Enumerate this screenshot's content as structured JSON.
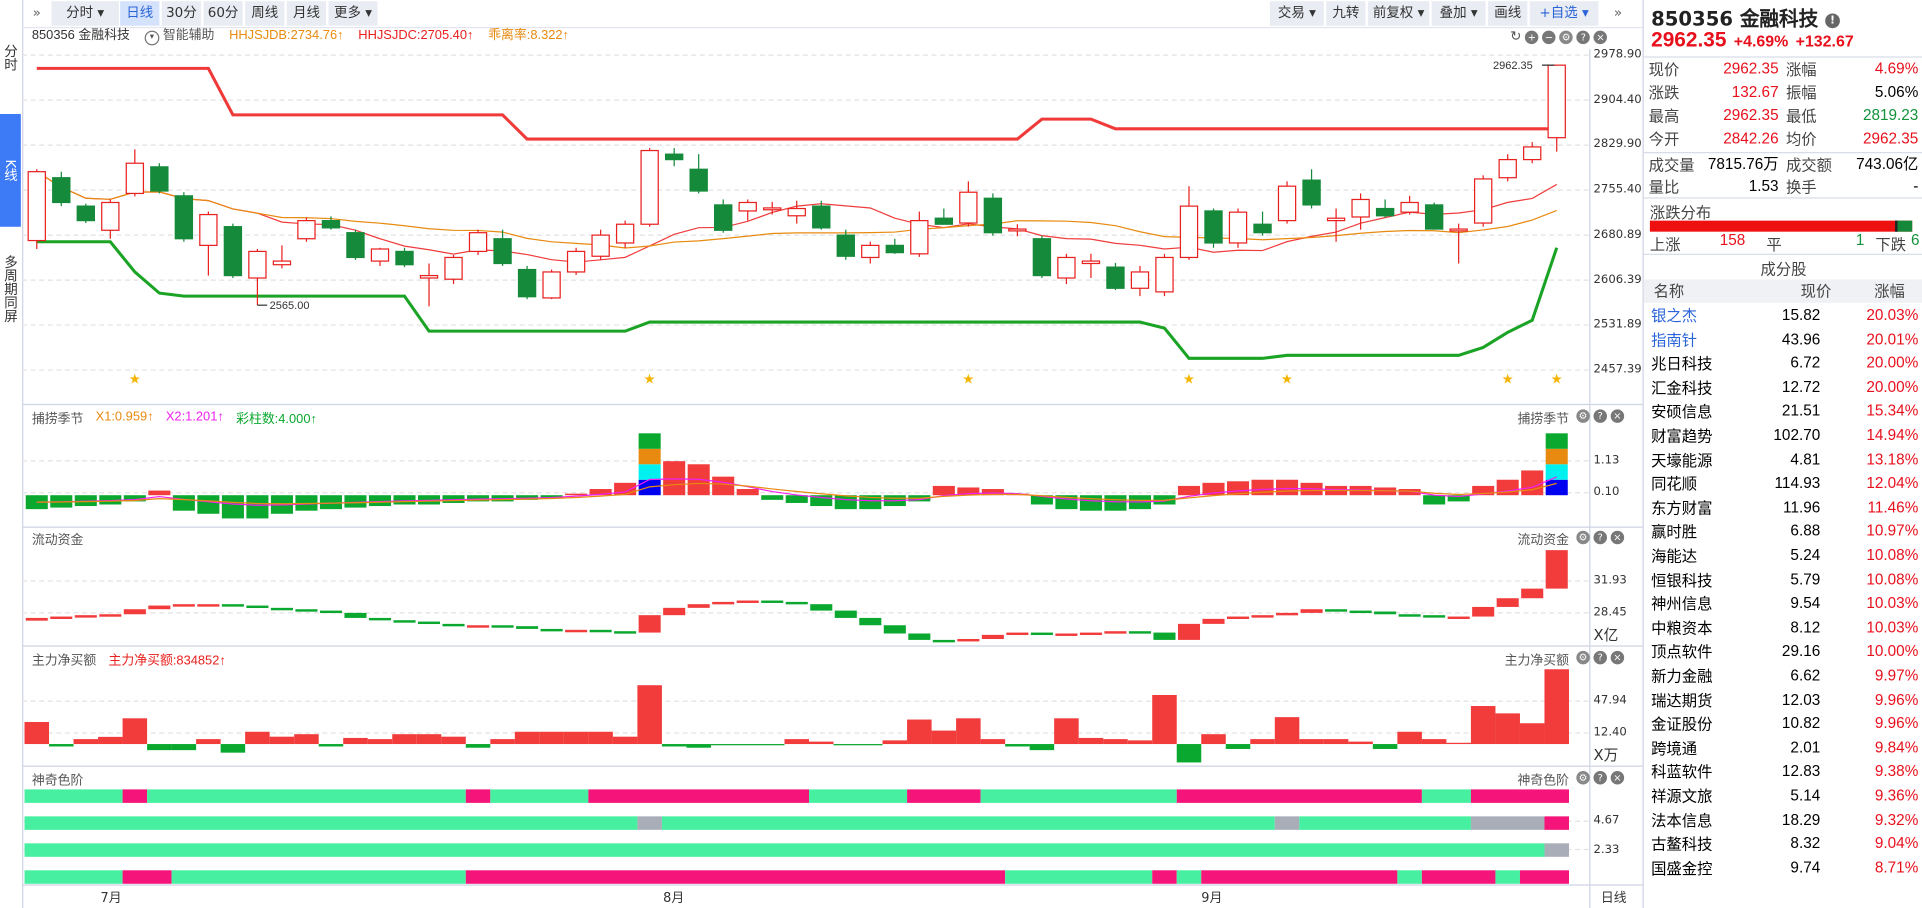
{
  "left_tabs": [
    {
      "label": "分时"
    },
    {
      "label": "K线"
    },
    {
      "label": "多周期同屏"
    }
  ],
  "toolbar": {
    "expand": "»",
    "left": [
      {
        "label": "分时 ▾"
      },
      {
        "label": "日线"
      },
      {
        "label": "30分"
      },
      {
        "label": "60分"
      },
      {
        "label": "周线"
      },
      {
        "label": "月线"
      },
      {
        "label": "更多 ▾"
      }
    ],
    "right": [
      {
        "label": "交易 ▾"
      },
      {
        "label": "九转"
      },
      {
        "label": "前复权 ▾"
      },
      {
        "label": "叠加 ▾"
      },
      {
        "label": "画线"
      },
      {
        "label": "+自选 ▾"
      }
    ],
    "collapse": "»"
  },
  "chart_header": {
    "symbol": "850356 金融科技",
    "assist": "智能辅助",
    "ind1": "HHJSJDB:2734.76↑",
    "ind2": "HHJSJDC:2705.40↑",
    "ind3": "乖离率:8.322↑"
  },
  "colors": {
    "up": "#e8201e",
    "down": "#158a3a",
    "bar_up": "#f23b3b",
    "bar_down": "#0aa82e",
    "band_upper": "#f03a3a",
    "band_lower": "#1aa324",
    "ma5": "#f03c3c",
    "ma10": "#e88a10",
    "pink": "#f5147a",
    "mint": "#46f0a0",
    "gray": "#a9adb8"
  },
  "main_axis": [
    "2978.90",
    "2904.40",
    "2829.90",
    "2755.40",
    "2680.89",
    "2606.39",
    "2531.89",
    "2457.39"
  ],
  "price_labels": {
    "high": "2962.35",
    "low": "2565.00"
  },
  "x_labels": [
    "7月",
    "8月",
    "9月"
  ],
  "period_label": "日线",
  "candles": [
    [
      2672,
      2790,
      2658,
      2786
    ],
    [
      2776,
      2786,
      2729,
      2735
    ],
    [
      2729,
      2733,
      2701,
      2705
    ],
    [
      2689,
      2740,
      2675,
      2735
    ],
    [
      2750,
      2823,
      2745,
      2800
    ],
    [
      2794,
      2800,
      2750,
      2754
    ],
    [
      2746,
      2752,
      2670,
      2675
    ],
    [
      2664,
      2720,
      2614,
      2715
    ],
    [
      2695,
      2700,
      2610,
      2614
    ],
    [
      2610,
      2658,
      2565,
      2654
    ],
    [
      2632,
      2664,
      2626,
      2638
    ],
    [
      2675,
      2710,
      2670,
      2705
    ],
    [
      2705,
      2712,
      2690,
      2693
    ],
    [
      2685,
      2690,
      2640,
      2644
    ],
    [
      2638,
      2660,
      2630,
      2658
    ],
    [
      2654,
      2660,
      2628,
      2632
    ],
    [
      2610,
      2634,
      2563,
      2614
    ],
    [
      2608,
      2648,
      2600,
      2644
    ],
    [
      2654,
      2690,
      2648,
      2685
    ],
    [
      2675,
      2690,
      2630,
      2634
    ],
    [
      2624,
      2630,
      2575,
      2579
    ],
    [
      2577,
      2624,
      2575,
      2620
    ],
    [
      2620,
      2660,
      2615,
      2654
    ],
    [
      2646,
      2690,
      2640,
      2681
    ],
    [
      2668,
      2705,
      2660,
      2699
    ],
    [
      2699,
      2825,
      2695,
      2821
    ],
    [
      2815,
      2825,
      2795,
      2806
    ],
    [
      2790,
      2815,
      2750,
      2754
    ],
    [
      2731,
      2740,
      2685,
      2689
    ],
    [
      2721,
      2740,
      2705,
      2735
    ],
    [
      2725,
      2736,
      2715,
      2726
    ],
    [
      2713,
      2738,
      2700,
      2725
    ],
    [
      2729,
      2738,
      2690,
      2693
    ],
    [
      2681,
      2690,
      2640,
      2646
    ],
    [
      2644,
      2670,
      2634,
      2664
    ],
    [
      2664,
      2675,
      2650,
      2652
    ],
    [
      2650,
      2720,
      2645,
      2705
    ],
    [
      2709,
      2725,
      2700,
      2699
    ],
    [
      2701,
      2770,
      2695,
      2752
    ],
    [
      2742,
      2750,
      2680,
      2685
    ],
    [
      2689,
      2699,
      2679,
      2691
    ],
    [
      2675,
      2680,
      2610,
      2614
    ],
    [
      2610,
      2650,
      2600,
      2644
    ],
    [
      2634,
      2650,
      2610,
      2638
    ],
    [
      2628,
      2635,
      2590,
      2593
    ],
    [
      2593,
      2630,
      2580,
      2620
    ],
    [
      2587,
      2650,
      2580,
      2644
    ],
    [
      2644,
      2762,
      2640,
      2729
    ],
    [
      2721,
      2725,
      2660,
      2668
    ],
    [
      2668,
      2725,
      2660,
      2719
    ],
    [
      2699,
      2720,
      2680,
      2685
    ],
    [
      2705,
      2770,
      2700,
      2762
    ],
    [
      2772,
      2790,
      2725,
      2731
    ],
    [
      2705,
      2725,
      2670,
      2709
    ],
    [
      2711,
      2750,
      2690,
      2740
    ],
    [
      2725,
      2740,
      2710,
      2713
    ],
    [
      2719,
      2746,
      2715,
      2735
    ],
    [
      2731,
      2735,
      2690,
      2691
    ],
    [
      2689,
      2700,
      2634,
      2691
    ],
    [
      2701,
      2780,
      2695,
      2774
    ],
    [
      2776,
      2815,
      2770,
      2806
    ],
    [
      2806,
      2835,
      2800,
      2827
    ],
    [
      2842.26,
      2962.35,
      2819.23,
      2962.35
    ]
  ],
  "band_upper": [
    2957,
    2957,
    2957,
    2957,
    2957,
    2957,
    2957,
    2957,
    2880,
    2880,
    2880,
    2880,
    2880,
    2880,
    2880,
    2880,
    2880,
    2880,
    2880,
    2880,
    2840,
    2840,
    2840,
    2840,
    2840,
    2840,
    2840,
    2840,
    2840,
    2840,
    2840,
    2840,
    2840,
    2840,
    2840,
    2840,
    2840,
    2840,
    2840,
    2840,
    2840,
    2873,
    2873,
    2873,
    2857,
    2857,
    2857,
    2857,
    2857,
    2857,
    2857,
    2857,
    2857,
    2857,
    2857,
    2857,
    2857,
    2857,
    2857,
    2857,
    2857,
    2857,
    2857
  ],
  "band_lower": [
    2670,
    2670,
    2670,
    2670,
    2620,
    2585,
    2580,
    2580,
    2580,
    2580,
    2580,
    2580,
    2580,
    2580,
    2580,
    2580,
    2522,
    2522,
    2522,
    2522,
    2522,
    2522,
    2522,
    2522,
    2522,
    2537,
    2537,
    2537,
    2537,
    2537,
    2537,
    2537,
    2537,
    2537,
    2537,
    2537,
    2537,
    2537,
    2537,
    2537,
    2537,
    2537,
    2537,
    2537,
    2537,
    2537,
    2527,
    2477,
    2477,
    2477,
    2477,
    2482,
    2482,
    2482,
    2482,
    2482,
    2482,
    2482,
    2482,
    2495,
    2520,
    2540,
    2660
  ],
  "stars": [
    4,
    25,
    38,
    47,
    51,
    60,
    62
  ],
  "panels": {
    "p1": {
      "title": "捕捞季节",
      "x1": "X1:0.959↑",
      "x2": "X2:1.201↑",
      "cnt": "彩柱数:4.000↑",
      "axis": [
        "1.13",
        "0.10"
      ],
      "values": [
        -0.45,
        -0.4,
        -0.35,
        -0.3,
        -0.2,
        0.15,
        -0.5,
        -0.6,
        -0.75,
        -0.75,
        -0.6,
        -0.5,
        -0.45,
        -0.4,
        -0.35,
        -0.3,
        -0.3,
        -0.25,
        -0.2,
        -0.2,
        -0.15,
        -0.1,
        0.05,
        0.2,
        0.4,
        2.0,
        1.1,
        1.0,
        0.6,
        0.2,
        -0.15,
        -0.25,
        -0.35,
        -0.45,
        -0.45,
        -0.35,
        -0.2,
        0.3,
        0.25,
        0.2,
        0.05,
        -0.3,
        -0.45,
        -0.5,
        -0.5,
        -0.45,
        -0.3,
        0.3,
        0.4,
        0.45,
        0.5,
        0.5,
        0.4,
        0.3,
        0.3,
        0.25,
        0.2,
        -0.3,
        -0.2,
        0.3,
        0.5,
        0.8,
        2.0
      ],
      "stacked": [
        25,
        62
      ],
      "stack_colors": [
        "#0000f0",
        "#00f0f0",
        "#e88a10",
        "#0aa82e"
      ]
    },
    "p2": {
      "title": "流动资金",
      "axis": [
        "31.93",
        "28.45"
      ],
      "unit": "X亿",
      "levels": [
        27.9,
        28.05,
        28.2,
        28.3,
        28.85,
        29.25,
        29.4,
        29.4,
        29.25,
        29.0,
        28.85,
        28.7,
        28.45,
        27.9,
        27.65,
        27.5,
        27.25,
        27.1,
        27.1,
        27.0,
        26.7,
        26.6,
        26.6,
        26.45,
        26.3,
        28.2,
        29.0,
        29.4,
        29.65,
        29.8,
        29.65,
        29.4,
        28.7,
        27.9,
        27.1,
        26.2,
        25.5,
        25.4,
        25.6,
        26.05,
        26.3,
        26.2,
        26.2,
        26.3,
        26.45,
        26.3,
        25.5,
        27.25,
        27.8,
        28.05,
        28.2,
        28.45,
        28.85,
        28.7,
        28.6,
        28.3,
        28.2,
        28.05,
        28.05,
        29.1,
        30.05,
        31.1,
        35.3
      ]
    },
    "p3": {
      "title": "主力净买额",
      "value": "主力净买额:834852↑",
      "axis": [
        "47.94",
        "12.40"
      ],
      "unit": "X万",
      "values": [
        24.6,
        -2.7,
        5.5,
        8,
        28.7,
        -6.8,
        -6.8,
        5.5,
        -9.6,
        13.7,
        8.2,
        11,
        -2.7,
        6.8,
        5.5,
        11,
        11,
        8.2,
        -4.1,
        5.5,
        13.7,
        13.7,
        13.7,
        13.7,
        8.2,
        65.6,
        -2.7,
        -4.1,
        -1.4,
        -1.4,
        -1.4,
        5.5,
        2.7,
        -1.4,
        -1.4,
        4.1,
        27.3,
        15,
        28.7,
        5.5,
        -2.7,
        -6.8,
        28.7,
        6.8,
        5.5,
        4.1,
        54.7,
        -20.5,
        11,
        -5.5,
        5.5,
        30,
        5.5,
        5.5,
        2.7,
        -5.5,
        13.7,
        5.5,
        1.4,
        42.4,
        34.2,
        23.2,
        83.4
      ]
    },
    "p4": {
      "title": "神奇色阶",
      "axis": [
        "4.67",
        "2.33"
      ],
      "rows": [
        [
          [
            "mint",
            4
          ],
          [
            "pink",
            1
          ],
          [
            "mint",
            13
          ],
          [
            "pink",
            1
          ],
          [
            "mint",
            4
          ],
          [
            "pink",
            9
          ],
          [
            "mint",
            4
          ],
          [
            "pink",
            3
          ],
          [
            "mint",
            8
          ],
          [
            "pink",
            10
          ],
          [
            "mint",
            2
          ],
          [
            "pink",
            4
          ]
        ],
        [
          [
            "mint",
            25
          ],
          [
            "gray",
            1
          ],
          [
            "mint",
            25
          ],
          [
            "gray",
            1
          ],
          [
            "mint",
            7
          ],
          [
            "gray",
            3
          ],
          [
            "pink",
            1
          ]
        ],
        [
          [
            "mint",
            62
          ],
          [
            "gray",
            1
          ]
        ],
        [
          [
            "mint",
            4
          ],
          [
            "pink",
            2
          ],
          [
            "mint",
            12
          ],
          [
            "pink",
            22
          ],
          [
            "mint",
            6
          ],
          [
            "pink",
            1
          ],
          [
            "mint",
            1
          ],
          [
            "pink",
            8
          ],
          [
            "mint",
            1
          ],
          [
            "pink",
            3
          ],
          [
            "mint",
            1
          ],
          [
            "pink",
            2
          ]
        ]
      ]
    }
  },
  "quote": {
    "title": "850356 金融科技",
    "price": "2962.35",
    "pct": "+4.69%",
    "chg": "+132.67",
    "stats": [
      [
        {
          "k": "现价",
          "v": "2962.35",
          "c": "red"
        },
        {
          "k": "涨幅",
          "v": "4.69%",
          "c": "red"
        }
      ],
      [
        {
          "k": "涨跌",
          "v": "132.67",
          "c": "red"
        },
        {
          "k": "振幅",
          "v": "5.06%",
          "c": ""
        }
      ],
      [
        {
          "k": "最高",
          "v": "2962.35",
          "c": "red"
        },
        {
          "k": "最低",
          "v": "2819.23",
          "c": "green"
        }
      ],
      [
        {
          "k": "今开",
          "v": "2842.26",
          "c": "red"
        },
        {
          "k": "均价",
          "v": "2962.35",
          "c": "red"
        }
      ],
      [
        {
          "k": "成交量",
          "v": "7815.76万",
          "c": ""
        },
        {
          "k": "成交额",
          "v": "743.06亿",
          "c": ""
        }
      ],
      [
        {
          "k": "量比",
          "v": "1.53",
          "c": ""
        },
        {
          "k": "换手",
          "v": "-",
          "c": ""
        }
      ]
    ],
    "dist_title": "涨跌分布",
    "up_label": "上涨",
    "up": "158",
    "flat_label": "平",
    "flat": "1",
    "down_label": "下跌",
    "down": "6",
    "list_title": "成分股",
    "cols": [
      "名称",
      "现价",
      "涨幅"
    ],
    "stocks": [
      {
        "name": "银之杰",
        "price": "15.82",
        "pct": "20.03%",
        "link": true
      },
      {
        "name": "指南针",
        "price": "43.96",
        "pct": "20.01%",
        "link": true
      },
      {
        "name": "兆日科技",
        "price": "6.72",
        "pct": "20.00%"
      },
      {
        "name": "汇金科技",
        "price": "12.72",
        "pct": "20.00%"
      },
      {
        "name": "安硕信息",
        "price": "21.51",
        "pct": "15.34%"
      },
      {
        "name": "财富趋势",
        "price": "102.70",
        "pct": "14.94%"
      },
      {
        "name": "天壕能源",
        "price": "4.81",
        "pct": "13.18%"
      },
      {
        "name": "同花顺",
        "price": "114.93",
        "pct": "12.04%"
      },
      {
        "name": "东方财富",
        "price": "11.96",
        "pct": "11.46%"
      },
      {
        "name": "赢时胜",
        "price": "6.88",
        "pct": "10.97%"
      },
      {
        "name": "海能达",
        "price": "5.24",
        "pct": "10.08%"
      },
      {
        "name": "恒银科技",
        "price": "5.79",
        "pct": "10.08%"
      },
      {
        "name": "神州信息",
        "price": "9.54",
        "pct": "10.03%"
      },
      {
        "name": "中粮资本",
        "price": "8.12",
        "pct": "10.03%"
      },
      {
        "name": "顶点软件",
        "price": "29.16",
        "pct": "10.00%"
      },
      {
        "name": "新力金融",
        "price": "6.62",
        "pct": "9.97%"
      },
      {
        "name": "瑞达期货",
        "price": "12.03",
        "pct": "9.96%"
      },
      {
        "name": "金证股份",
        "price": "10.82",
        "pct": "9.96%"
      },
      {
        "name": "跨境通",
        "price": "2.01",
        "pct": "9.84%"
      },
      {
        "name": "科蓝软件",
        "price": "12.83",
        "pct": "9.38%"
      },
      {
        "name": "祥源文旅",
        "price": "5.14",
        "pct": "9.36%"
      },
      {
        "name": "法本信息",
        "price": "18.29",
        "pct": "9.32%"
      },
      {
        "name": "古鳌科技",
        "price": "8.32",
        "pct": "9.04%"
      },
      {
        "name": "国盛金控",
        "price": "9.74",
        "pct": "8.71%"
      }
    ]
  }
}
